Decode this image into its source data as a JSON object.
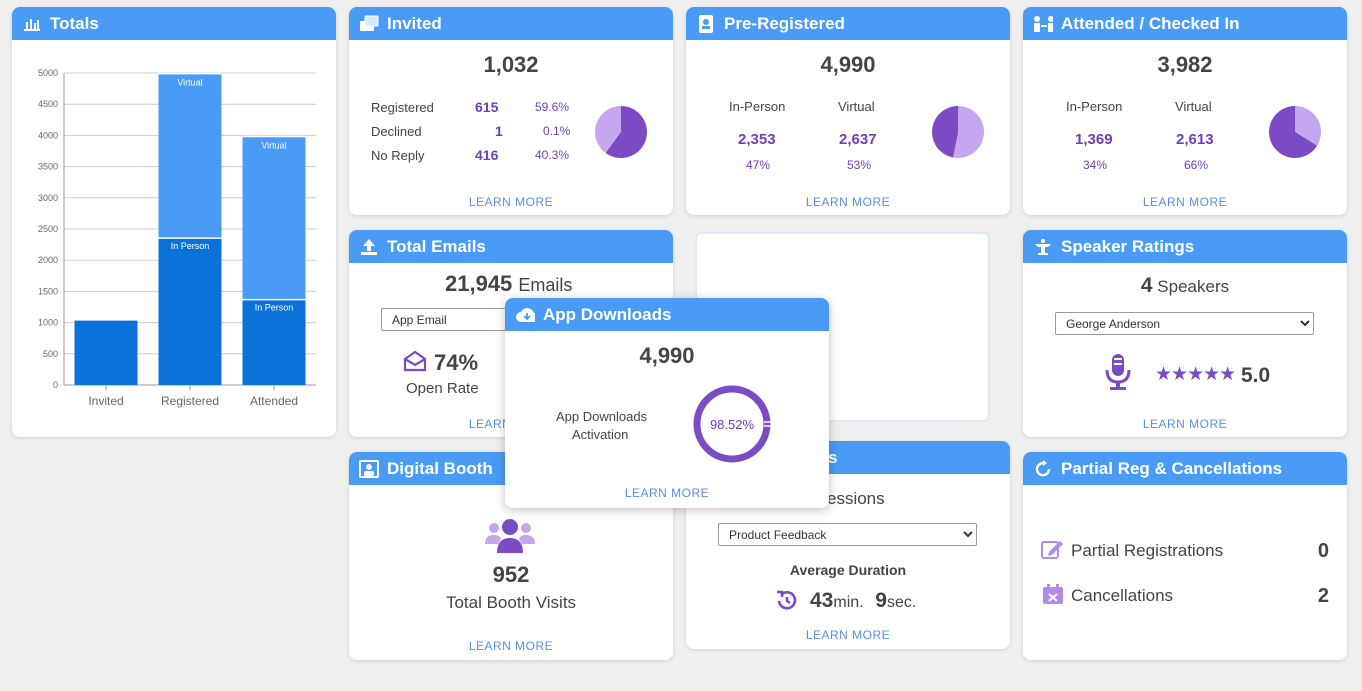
{
  "totals": {
    "title": "Totals",
    "chart_data": {
      "type": "bar",
      "categories": [
        "Invited",
        "Registered",
        "Attended"
      ],
      "series": [
        {
          "name": "In Person",
          "values": [
            1032,
            2353,
            1369
          ]
        },
        {
          "name": "Virtual",
          "values": [
            0,
            2637,
            2613
          ]
        }
      ],
      "ylim": [
        0,
        5000
      ],
      "yticks": [
        "0",
        "500",
        "1000",
        "1500",
        "2000",
        "2500",
        "3000",
        "3500",
        "4000",
        "4500",
        "5000"
      ],
      "seg_labels": {
        "virtual": "Virtual",
        "inperson": "In Person"
      }
    }
  },
  "invited": {
    "title": "Invited",
    "total": "1,032",
    "rows": [
      {
        "label": "Registered",
        "value": "615",
        "pct": "59.6%"
      },
      {
        "label": "Declined",
        "value": "1",
        "pct": "0.1%"
      },
      {
        "label": "No Reply",
        "value": "416",
        "pct": "40.3%"
      }
    ],
    "learn": "LEARN MORE"
  },
  "preregistered": {
    "title": "Pre-Registered",
    "total": "4,990",
    "col1": "In-Person",
    "col2": "Virtual",
    "v1": "2,353",
    "v2": "2,637",
    "p1": "47%",
    "p2": "53%",
    "learn": "LEARN MORE"
  },
  "attended": {
    "title": "Attended / Checked In",
    "total": "3,982",
    "col1": "In-Person",
    "col2": "Virtual",
    "v1": "1,369",
    "v2": "2,613",
    "p1": "34%",
    "p2": "66%",
    "learn": "LEARN MORE"
  },
  "emails": {
    "title": "Total Emails",
    "count": "21,945",
    "unit": "Emails",
    "select": "App Email",
    "rate": "74%",
    "rate_label": "Open Rate",
    "learn": "LEARN MORE"
  },
  "speaker": {
    "title": "Speaker Ratings",
    "count": "4",
    "unit": "Speakers",
    "select": "George Anderson",
    "rating": "5.0",
    "stars": "★★★★★",
    "learn": "LEARN MORE"
  },
  "booth": {
    "title": "Digital Booth",
    "count": "952",
    "label": "Total Booth Visits",
    "learn": "LEARN MORE"
  },
  "sessions": {
    "title_tail": "s",
    "count_tail": "essions",
    "select": "Product Feedback",
    "avg_label": "Average Duration",
    "min": "43",
    "min_unit": "min.",
    "sec": "9",
    "sec_unit": "sec.",
    "learn": "LEARN MORE"
  },
  "partial": {
    "title": "Partial Reg & Cancellations",
    "row1": "Partial Registrations",
    "v1": "0",
    "row2": "Cancellations",
    "v2": "2"
  },
  "app": {
    "title": "App Downloads",
    "total": "4,990",
    "label1": "App Downloads",
    "label2": "Activation",
    "pct": "98.52%",
    "learn": "LEARN MORE"
  }
}
